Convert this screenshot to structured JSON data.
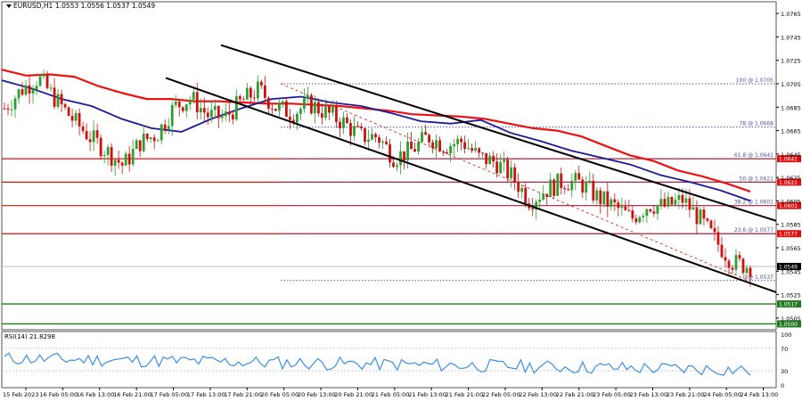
{
  "header": {
    "symbol": "EURUSD,H1",
    "ohlc": "1.0553 1.0556 1.0537 1.0549"
  },
  "rsi_label": "RSI(14) 21.8298",
  "colors": {
    "ma_fast": "#1a1a9a",
    "ma_slow": "#ee1111",
    "bull": "#2e9e2e",
    "bear": "#cc1111",
    "rsi": "#3a8fe8",
    "support": "#1f7a1f",
    "level": "#e01010",
    "fib": "#4b55a8"
  },
  "chart_data": {
    "type": "candlestick",
    "ylim": [
      1.0495,
      1.0775
    ],
    "y_ticks": [
      "1.0765",
      "1.0745",
      "1.0725",
      "1.0705",
      "1.0685",
      "1.0665",
      "1.0645",
      "1.0625",
      "1.0605",
      "1.0585",
      "1.0565",
      "1.0545",
      "1.0525",
      "1.0505"
    ],
    "x_ticks": [
      "15 Feb 2023",
      "16 Feb 05:00",
      "16 Feb 13:00",
      "16 Feb 21:00",
      "17 Feb 05:00",
      "17 Feb 13:00",
      "17 Feb 21:00",
      "20 Feb 05:00",
      "20 Feb 13:00",
      "20 Feb 21:00",
      "21 Feb 05:00",
      "21 Feb 13:00",
      "21 Feb 21:00",
      "22 Feb 05:00",
      "22 Feb 13:00",
      "22 Feb 21:00",
      "23 Feb 05:00",
      "23 Feb 13:00",
      "23 Feb 21:00",
      "24 Feb 05:00",
      "24 Feb 13:00"
    ],
    "close_anchors": [
      1.0684,
      1.07,
      1.071,
      1.0692,
      1.0675,
      1.066,
      1.0648,
      1.0635,
      1.0655,
      1.0662,
      1.0685,
      1.0693,
      1.0678,
      1.0676,
      1.069,
      1.07,
      1.0685,
      1.068,
      1.0688,
      1.068,
      1.0672,
      1.066,
      1.066,
      1.0642,
      1.0648,
      1.066,
      1.0652,
      1.0656,
      1.0642,
      1.0638,
      1.0625,
      1.0605,
      1.0615,
      1.0622,
      1.062,
      1.0608,
      1.06,
      1.059,
      1.0602,
      1.06,
      1.0606,
      1.059,
      1.057,
      1.0552,
      1.0549
    ],
    "ma_slow": [
      1.0717,
      1.0712,
      1.0713,
      1.0711,
      1.0703,
      1.0697,
      1.0692,
      1.0692,
      1.069,
      1.069,
      1.0689,
      1.0688,
      1.0688,
      1.0687,
      1.0686,
      1.0684,
      1.0682,
      1.0679,
      1.0678,
      1.0677,
      1.0675,
      1.0671,
      1.0667,
      1.0665,
      1.066,
      1.0652,
      1.0644,
      1.0639,
      1.0631,
      1.0626,
      1.062,
      1.0613
    ],
    "ma_fast": [
      1.0708,
      1.0701,
      1.0692,
      1.0686,
      1.0675,
      1.0667,
      1.0664,
      1.0675,
      1.0684,
      1.0692,
      1.0694,
      1.0689,
      1.0686,
      1.068,
      1.0673,
      1.0671,
      1.0674,
      1.0663,
      1.0656,
      1.0648,
      1.0642,
      1.0636,
      1.0627,
      1.0621,
      1.0614,
      1.0605
    ],
    "rsi": {
      "ylim": [
        0,
        100
      ],
      "levels": [
        30,
        70
      ],
      "last": 21.8298
    },
    "horizontal_levels": {
      "resistance": [
        "1.0641",
        "1.0621",
        "1.0601",
        "1.0577"
      ],
      "support": "1.0517",
      "bottom": "1.0500",
      "current_price": "1.0549"
    },
    "fibonacci": [
      {
        "label": "100 @ 1.0705",
        "value": 1.0705
      },
      {
        "label": "78 @ 1.0668",
        "value": 1.0668
      },
      {
        "label": "61.8 @ 1.0641",
        "value": 1.0641
      },
      {
        "label": "50 @ 1.0621",
        "value": 1.0621
      },
      {
        "label": "38.2 @ 1.0601",
        "value": 1.0601
      },
      {
        "label": "23.6 @ 1.0577",
        "value": 1.0577
      },
      {
        "label": "0 @ 1.0537",
        "value": 1.0537
      }
    ]
  }
}
